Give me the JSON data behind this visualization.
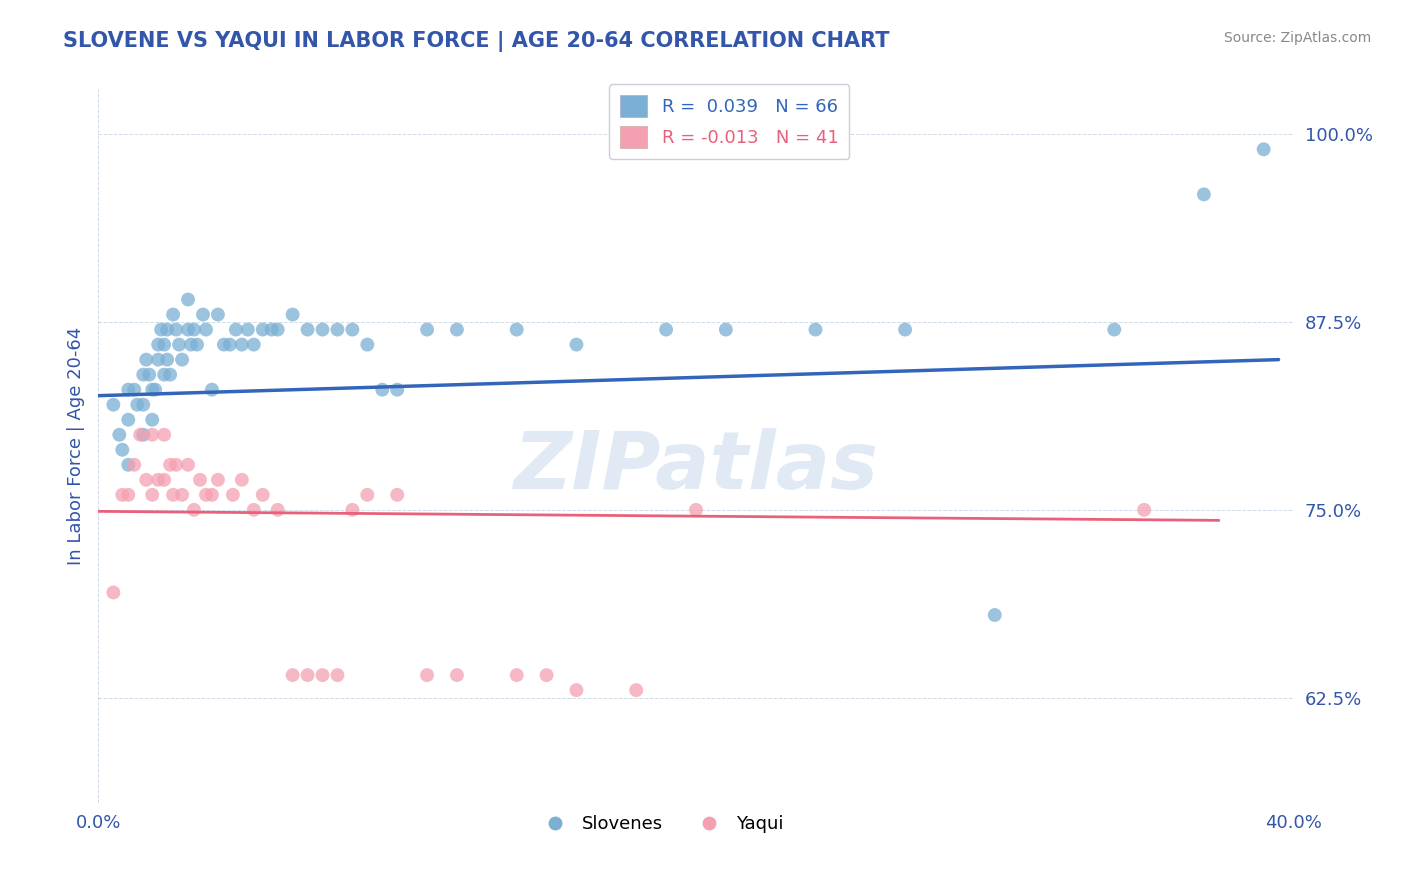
{
  "title": "SLOVENE VS YAQUI IN LABOR FORCE | AGE 20-64 CORRELATION CHART",
  "source": "Source: ZipAtlas.com",
  "ylabel": "In Labor Force | Age 20-64",
  "xlim": [
    0.0,
    0.4
  ],
  "ylim": [
    0.555,
    1.03
  ],
  "xticks": [
    0.0,
    0.4
  ],
  "xticklabels": [
    "0.0%",
    "40.0%"
  ],
  "ytick_positions": [
    0.625,
    0.75,
    0.875,
    1.0
  ],
  "ytick_labels": [
    "62.5%",
    "75.0%",
    "87.5%",
    "100.0%"
  ],
  "legend_blue_label": "R =  0.039   N = 66",
  "legend_pink_label": "R = -0.013   N = 41",
  "slovene_color": "#7BAFD4",
  "yaqui_color": "#F4A0B0",
  "blue_line_color": "#3366BB",
  "pink_line_color": "#E8607A",
  "watermark": "ZIPatlas",
  "title_color": "#3355AA",
  "axis_color": "#3355AA",
  "slovenes_scatter_x": [
    0.005,
    0.007,
    0.008,
    0.01,
    0.01,
    0.01,
    0.012,
    0.013,
    0.015,
    0.015,
    0.015,
    0.016,
    0.017,
    0.018,
    0.018,
    0.019,
    0.02,
    0.02,
    0.021,
    0.022,
    0.022,
    0.023,
    0.023,
    0.024,
    0.025,
    0.026,
    0.027,
    0.028,
    0.03,
    0.03,
    0.031,
    0.032,
    0.033,
    0.035,
    0.036,
    0.038,
    0.04,
    0.042,
    0.044,
    0.046,
    0.048,
    0.05,
    0.052,
    0.055,
    0.058,
    0.06,
    0.065,
    0.07,
    0.075,
    0.08,
    0.085,
    0.09,
    0.095,
    0.1,
    0.11,
    0.12,
    0.14,
    0.16,
    0.19,
    0.21,
    0.24,
    0.27,
    0.3,
    0.34,
    0.37,
    0.39
  ],
  "slovenes_scatter_y": [
    0.82,
    0.8,
    0.79,
    0.81,
    0.83,
    0.78,
    0.83,
    0.82,
    0.84,
    0.82,
    0.8,
    0.85,
    0.84,
    0.83,
    0.81,
    0.83,
    0.86,
    0.85,
    0.87,
    0.86,
    0.84,
    0.87,
    0.85,
    0.84,
    0.88,
    0.87,
    0.86,
    0.85,
    0.89,
    0.87,
    0.86,
    0.87,
    0.86,
    0.88,
    0.87,
    0.83,
    0.88,
    0.86,
    0.86,
    0.87,
    0.86,
    0.87,
    0.86,
    0.87,
    0.87,
    0.87,
    0.88,
    0.87,
    0.87,
    0.87,
    0.87,
    0.86,
    0.83,
    0.83,
    0.87,
    0.87,
    0.87,
    0.86,
    0.87,
    0.87,
    0.87,
    0.87,
    0.68,
    0.87,
    0.96,
    0.99
  ],
  "yaqui_scatter_x": [
    0.005,
    0.008,
    0.01,
    0.012,
    0.014,
    0.016,
    0.018,
    0.018,
    0.02,
    0.022,
    0.022,
    0.024,
    0.025,
    0.026,
    0.028,
    0.03,
    0.032,
    0.034,
    0.036,
    0.038,
    0.04,
    0.045,
    0.048,
    0.052,
    0.055,
    0.06,
    0.065,
    0.07,
    0.075,
    0.08,
    0.085,
    0.09,
    0.1,
    0.11,
    0.12,
    0.14,
    0.15,
    0.16,
    0.18,
    0.2,
    0.35
  ],
  "yaqui_scatter_y": [
    0.695,
    0.76,
    0.76,
    0.78,
    0.8,
    0.77,
    0.8,
    0.76,
    0.77,
    0.8,
    0.77,
    0.78,
    0.76,
    0.78,
    0.76,
    0.78,
    0.75,
    0.77,
    0.76,
    0.76,
    0.77,
    0.76,
    0.77,
    0.75,
    0.76,
    0.75,
    0.64,
    0.64,
    0.64,
    0.64,
    0.75,
    0.76,
    0.76,
    0.64,
    0.64,
    0.64,
    0.64,
    0.63,
    0.63,
    0.75,
    0.75
  ],
  "blue_line_x": [
    0.0,
    0.395
  ],
  "blue_line_y": [
    0.826,
    0.85
  ],
  "pink_line_x": [
    0.0,
    0.375
  ],
  "pink_line_y": [
    0.749,
    0.743
  ]
}
